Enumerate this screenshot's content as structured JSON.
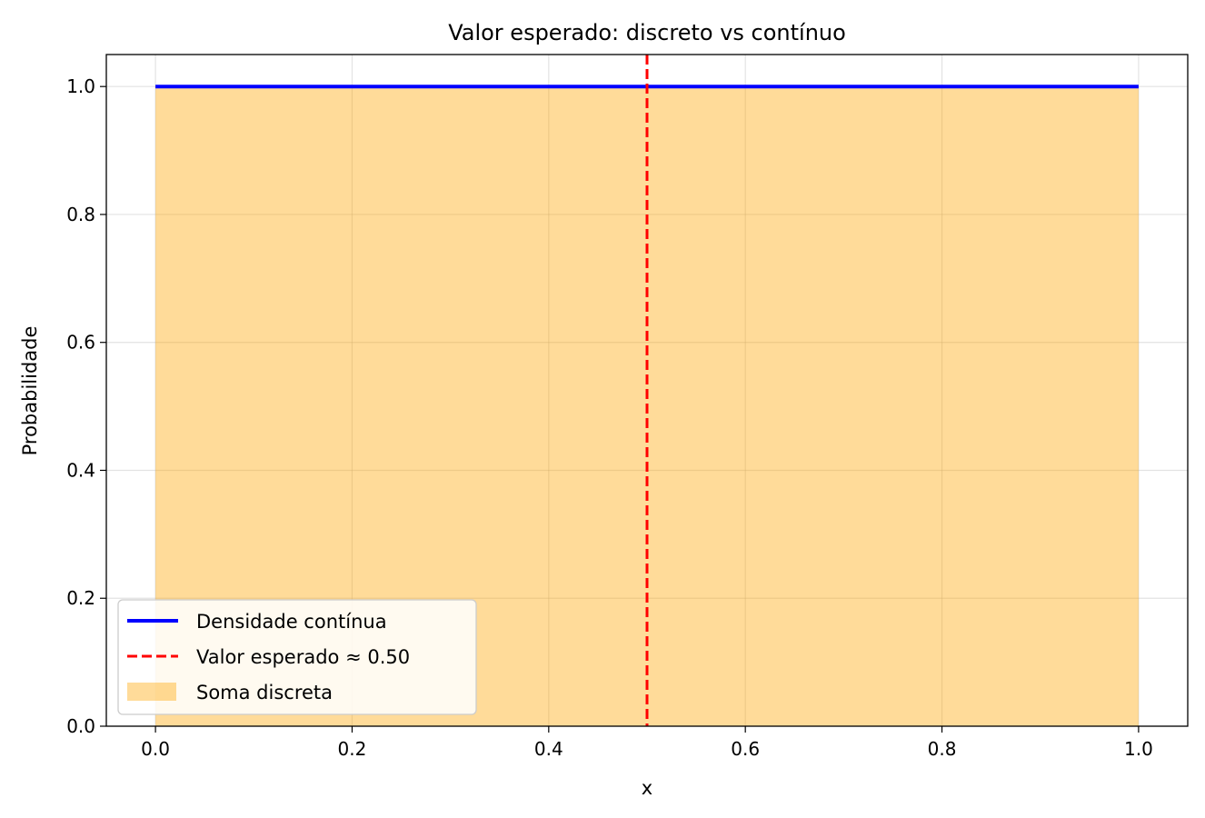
{
  "chart_data": {
    "type": "line",
    "title": "Valor esperado: discreto vs contínuo",
    "xlabel": "x",
    "ylabel": "Probabilidade",
    "xlim": [
      -0.05,
      1.05
    ],
    "ylim": [
      0.0,
      1.05
    ],
    "xticks": [
      0.0,
      0.2,
      0.4,
      0.6,
      0.8,
      1.0
    ],
    "xtick_labels": [
      "0.0",
      "0.2",
      "0.4",
      "0.6",
      "0.8",
      "1.0"
    ],
    "yticks": [
      0.0,
      0.2,
      0.4,
      0.6,
      0.8,
      1.0
    ],
    "ytick_labels": [
      "0.0",
      "0.2",
      "0.4",
      "0.6",
      "0.8",
      "1.0"
    ],
    "grid": true,
    "legend_position": "lower-left",
    "series": [
      {
        "name": "Densidade contínua",
        "kind": "line",
        "color": "#0000ff",
        "x": [
          0.0,
          1.0
        ],
        "y": [
          1.0,
          1.0
        ]
      },
      {
        "name": "Valor esperado ≈ 0.50",
        "kind": "vline",
        "color": "#ff0000",
        "linestyle": "dashed",
        "x": 0.5
      },
      {
        "name": "Soma discreta",
        "kind": "area",
        "color": "#ffa500",
        "alpha": 0.4,
        "x": [
          0.0,
          1.0
        ],
        "y": [
          1.0,
          1.0
        ]
      }
    ]
  }
}
